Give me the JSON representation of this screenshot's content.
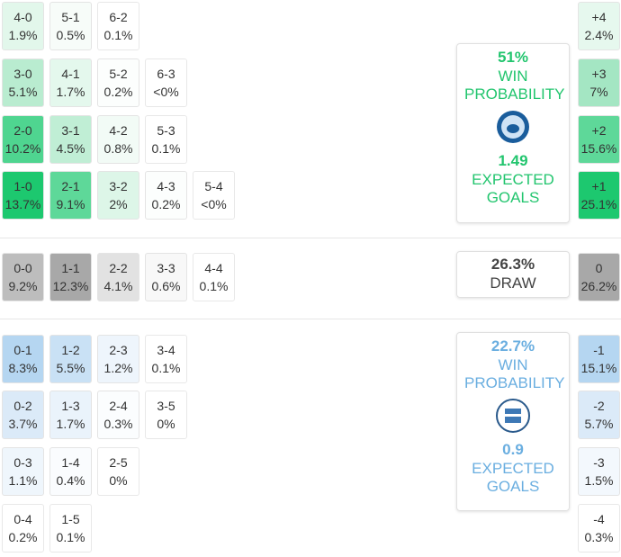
{
  "home": {
    "rows": [
      [
        {
          "score": "4-0",
          "pct": "1.9%",
          "color": "#e2f7eb"
        },
        {
          "score": "5-1",
          "pct": "0.5%",
          "color": "#f7fcf9"
        },
        {
          "score": "6-2",
          "pct": "0.1%",
          "color": "#ffffff"
        }
      ],
      [
        {
          "score": "3-0",
          "pct": "5.1%",
          "color": "#b9ecd0"
        },
        {
          "score": "4-1",
          "pct": "1.7%",
          "color": "#e4f8ed"
        },
        {
          "score": "5-2",
          "pct": "0.2%",
          "color": "#fcfefd"
        },
        {
          "score": "6-3",
          "pct": "<0%",
          "color": "#ffffff"
        }
      ],
      [
        {
          "score": "2-0",
          "pct": "10.2%",
          "color": "#4fd590"
        },
        {
          "score": "3-1",
          "pct": "4.5%",
          "color": "#c0eed5"
        },
        {
          "score": "4-2",
          "pct": "0.8%",
          "color": "#f2fbf6"
        },
        {
          "score": "5-3",
          "pct": "0.1%",
          "color": "#ffffff"
        }
      ],
      [
        {
          "score": "1-0",
          "pct": "13.7%",
          "color": "#1dc86f"
        },
        {
          "score": "2-1",
          "pct": "9.1%",
          "color": "#5ed899"
        },
        {
          "score": "3-2",
          "pct": "2%",
          "color": "#ddf6e8"
        },
        {
          "score": "4-3",
          "pct": "0.2%",
          "color": "#fcfefd"
        },
        {
          "score": "5-4",
          "pct": "<0%",
          "color": "#ffffff"
        }
      ]
    ],
    "summary": {
      "win": "51%",
      "win_label": "WIN PROBABILITY",
      "xg": "1.49",
      "xg_label": "EXPECTED GOALS"
    }
  },
  "draw": {
    "cells": [
      {
        "score": "0-0",
        "pct": "9.2%",
        "color": "#bdbdbd"
      },
      {
        "score": "1-1",
        "pct": "12.3%",
        "color": "#a8a8a8"
      },
      {
        "score": "2-2",
        "pct": "4.1%",
        "color": "#e2e2e2"
      },
      {
        "score": "3-3",
        "pct": "0.6%",
        "color": "#f8f8f8"
      },
      {
        "score": "4-4",
        "pct": "0.1%",
        "color": "#ffffff"
      }
    ],
    "summary": {
      "value": "26.3%",
      "label": "DRAW"
    }
  },
  "away": {
    "rows": [
      [
        {
          "score": "0-1",
          "pct": "8.3%",
          "color": "#b5d6f1"
        },
        {
          "score": "1-2",
          "pct": "5.5%",
          "color": "#c9e1f5"
        },
        {
          "score": "2-3",
          "pct": "1.2%",
          "color": "#eef5fc"
        },
        {
          "score": "3-4",
          "pct": "0.1%",
          "color": "#ffffff"
        }
      ],
      [
        {
          "score": "0-2",
          "pct": "3.7%",
          "color": "#dbeaf8"
        },
        {
          "score": "1-3",
          "pct": "1.7%",
          "color": "#eaf3fb"
        },
        {
          "score": "2-4",
          "pct": "0.3%",
          "color": "#fbfdfe"
        },
        {
          "score": "3-5",
          "pct": "0%",
          "color": "#ffffff"
        }
      ],
      [
        {
          "score": "0-3",
          "pct": "1.1%",
          "color": "#eff6fc"
        },
        {
          "score": "1-4",
          "pct": "0.4%",
          "color": "#fafcfe"
        },
        {
          "score": "2-5",
          "pct": "0%",
          "color": "#ffffff"
        }
      ],
      [
        {
          "score": "0-4",
          "pct": "0.2%",
          "color": "#ffffff"
        },
        {
          "score": "1-5",
          "pct": "0.1%",
          "color": "#ffffff"
        }
      ]
    ],
    "summary": {
      "win": "22.7%",
      "win_label": "WIN PROBABILITY",
      "xg": "0.9",
      "xg_label": "EXPECTED GOALS"
    }
  },
  "margins": [
    {
      "label": "+4",
      "pct": "2.4%",
      "color": "#e6f8ee"
    },
    {
      "label": "+3",
      "pct": "7%",
      "color": "#a4e6c3"
    },
    {
      "label": "+2",
      "pct": "15.6%",
      "color": "#5ed899"
    },
    {
      "label": "+1",
      "pct": "25.1%",
      "color": "#1dc86f"
    },
    {
      "label": "0",
      "pct": "26.2%",
      "color": "#a8a8a8"
    },
    {
      "label": "-1",
      "pct": "15.1%",
      "color": "#b5d6f1"
    },
    {
      "label": "-2",
      "pct": "5.7%",
      "color": "#dbeaf8"
    },
    {
      "label": "-3",
      "pct": "1.5%",
      "color": "#f3f8fd"
    },
    {
      "label": "-4",
      "pct": "0.3%",
      "color": "#ffffff"
    }
  ]
}
